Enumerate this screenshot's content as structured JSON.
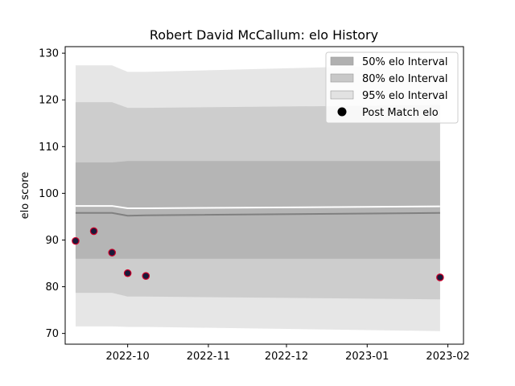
{
  "chart_data": {
    "type": "area",
    "title": "Robert David McCallum: elo History",
    "xlabel": "",
    "ylabel": "elo score",
    "x_ticks": [
      "2022-10",
      "2022-11",
      "2022-12",
      "2023-01",
      "2023-02"
    ],
    "y_ticks": [
      70,
      80,
      90,
      100,
      110,
      120,
      130
    ],
    "ylim": [
      67.7,
      131.4
    ],
    "xlim": [
      "2022-09-07",
      "2023-02-07"
    ],
    "grid": false,
    "legend_position": "top-right",
    "x": [
      "2022-09-11",
      "2022-09-18",
      "2022-09-25",
      "2022-10-01",
      "2022-10-08",
      "2023-01-29"
    ],
    "series": [
      {
        "name": "50% elo Interval",
        "kind": "band",
        "color": "#b0b0b0",
        "lower": [
          86.0,
          86.0,
          86.0,
          86.0,
          86.0,
          86.0
        ],
        "upper": [
          106.6,
          106.6,
          106.6,
          106.9,
          106.9,
          106.9
        ]
      },
      {
        "name": "80% elo Interval",
        "kind": "band",
        "color": "#c8c8c8",
        "lower": [
          78.7,
          78.7,
          78.7,
          77.9,
          77.9,
          77.3
        ],
        "upper": [
          119.5,
          119.5,
          119.5,
          118.3,
          118.3,
          118.9
        ]
      },
      {
        "name": "95% elo Interval",
        "kind": "band",
        "color": "#e2e2e2",
        "lower": [
          71.5,
          71.5,
          71.5,
          71.4,
          71.4,
          70.5
        ],
        "upper": [
          127.4,
          127.4,
          127.4,
          126.0,
          126.0,
          127.6
        ]
      },
      {
        "name": "",
        "kind": "line",
        "color": "#ffffff",
        "values": [
          97.3,
          97.3,
          97.3,
          96.8,
          96.8,
          97.2
        ]
      },
      {
        "name": "",
        "kind": "line",
        "color": "#808080",
        "values": [
          95.8,
          95.8,
          95.8,
          95.2,
          95.3,
          95.8
        ]
      },
      {
        "name": "Post Match elo",
        "kind": "scatter",
        "color": "#1a1a3a",
        "edge_color": "#d0002a",
        "values": [
          89.8,
          91.9,
          87.3,
          82.9,
          82.3,
          82.0
        ]
      }
    ]
  }
}
